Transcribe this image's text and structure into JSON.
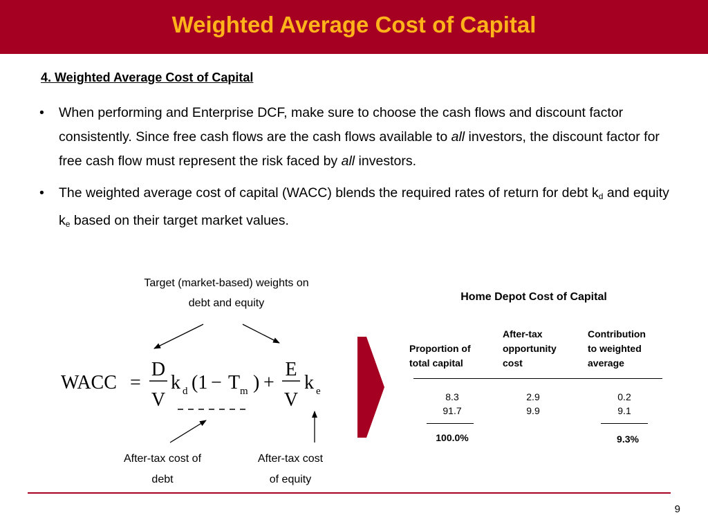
{
  "header": {
    "title": "Weighted Average Cost of Capital"
  },
  "section": {
    "title": "4.  Weighted Average Cost of Capital"
  },
  "bullets": [
    {
      "marker": "•",
      "t1": "When performing and Enterprise DCF, make sure to choose the cash flows and discount factor consistently.  Since free cash flows are the cash flows available to ",
      "em1": "all",
      "t2": " investors, the discount factor for free cash flow must represent the risk faced by ",
      "em2": "all",
      "t3": " investors."
    },
    {
      "marker": "•",
      "t1": "The weighted average cost of capital (WACC) blends the required rates of return for debt k",
      "sub1": "d",
      "t2": " and equity k",
      "sub2": "e",
      "t3": " based on their target market values."
    }
  ],
  "formula": {
    "lhs": "WACC",
    "eq": "=",
    "frac1_num": "D",
    "frac1_den": "V",
    "kd": "k",
    "kd_sub": "d",
    "open": "(1",
    "minus": "−",
    "tm": "T",
    "tm_sub": "m",
    "close": ")",
    "plus": "+",
    "frac2_num": "E",
    "frac2_den": "V",
    "ke": "k",
    "ke_sub": "e"
  },
  "labels": {
    "weights_line1": "Target (market-based) weights on",
    "weights_line2": "debt and equity",
    "kd_line1": "After-tax cost of",
    "kd_line2": "debt",
    "ke_line1": "After-tax cost",
    "ke_line2": "of equity"
  },
  "table": {
    "title": "Home Depot Cost of Capital",
    "columns": [
      {
        "l1": "Proportion of",
        "l2": "total capital",
        "l3": ""
      },
      {
        "l1": "After-tax",
        "l2": "opportunity",
        "l3": "cost"
      },
      {
        "l1": "Contribution",
        "l2": "to weighted",
        "l3": "average"
      }
    ],
    "rows": [
      [
        "8.3",
        "2.9",
        "0.2"
      ],
      [
        "91.7",
        "9.9",
        "9.1"
      ]
    ],
    "totals": {
      "proportion": "100.0%",
      "contribution": "9.3%"
    }
  },
  "footer": {
    "page_number": "9"
  },
  "colors": {
    "header_bg": "#a50021",
    "title_text": "#ffb31a",
    "chevron": "#a50021",
    "divider": "#a50021"
  }
}
